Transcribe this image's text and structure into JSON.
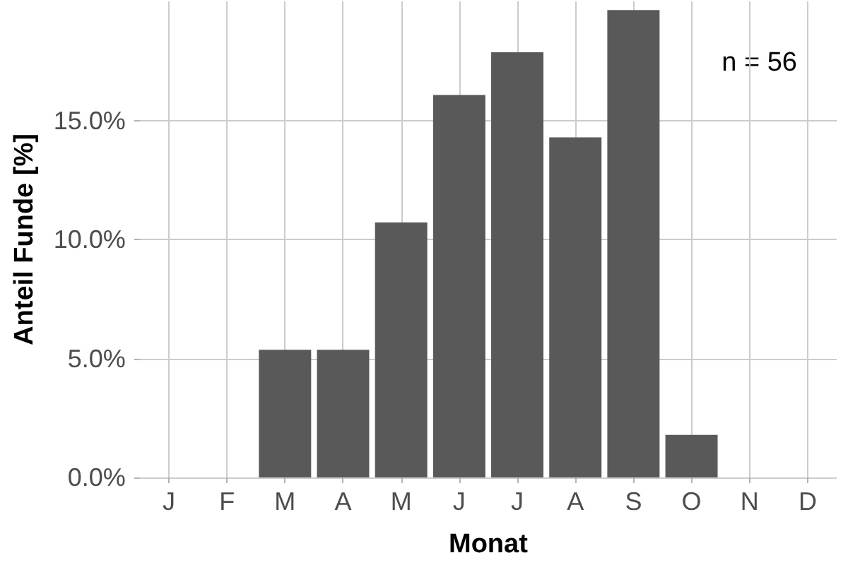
{
  "chart_data": {
    "type": "bar",
    "xlabel": "Monat",
    "ylabel": "Anteil Funde [%]",
    "categories": [
      "J",
      "F",
      "M",
      "A",
      "M",
      "J",
      "J",
      "A",
      "S",
      "O",
      "N",
      "D"
    ],
    "values": [
      0,
      0,
      5.36,
      5.36,
      10.71,
      16.07,
      17.86,
      14.29,
      19.64,
      1.79,
      0,
      0
    ],
    "color": "#595959",
    "ylim": [
      0,
      20
    ],
    "yticks": [
      {
        "value": 0,
        "label": "0.0%"
      },
      {
        "value": 5,
        "label": "5.0%"
      },
      {
        "value": 10,
        "label": "10.0%"
      },
      {
        "value": 15,
        "label": "15.0%"
      }
    ],
    "grid": true,
    "annotations": [
      "n = 56"
    ]
  }
}
